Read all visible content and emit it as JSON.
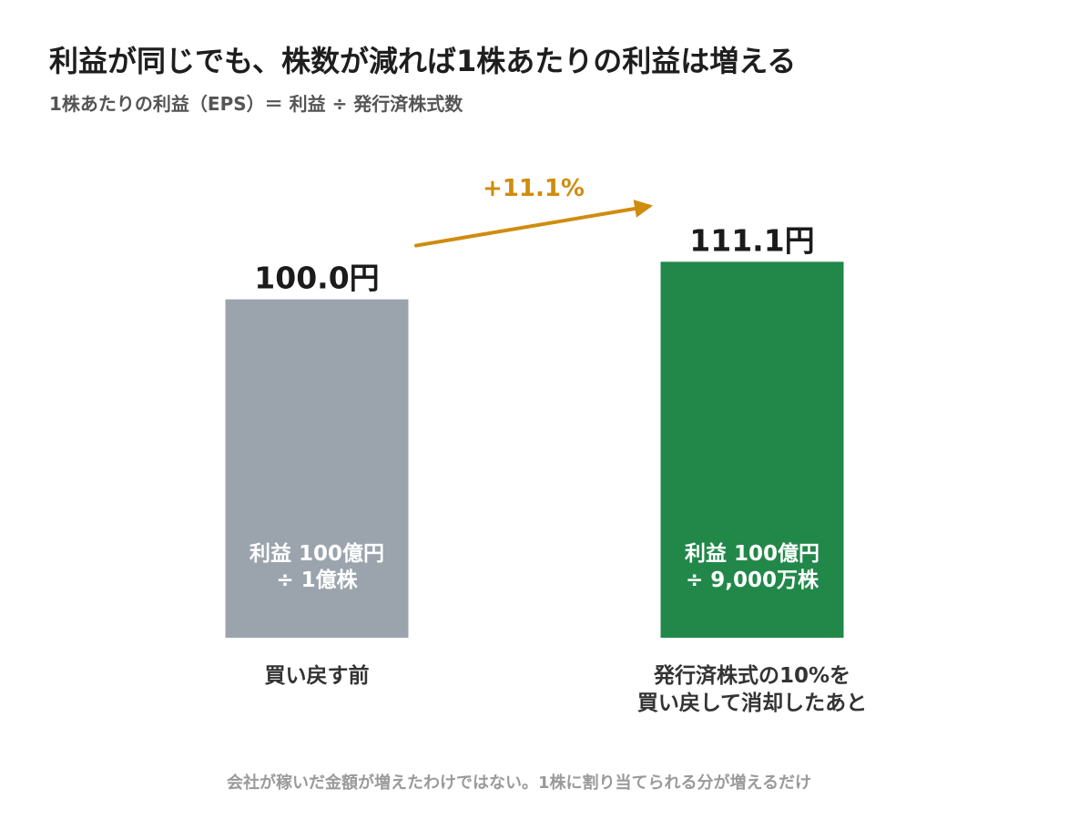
{
  "chart_data": {
    "type": "bar",
    "title": "利益が同じでも、株数が減れば1株あたりの利益は増える",
    "subtitle": "1株あたりの利益（EPS）＝ 利益 ÷ 発行済株式数",
    "categories": [
      [
        "買い戻す前"
      ],
      [
        "発行済株式の10%を",
        "買い戻して消却したあと"
      ]
    ],
    "values": [
      100.0,
      111.1
    ],
    "value_labels": [
      "100.0円",
      "111.1円"
    ],
    "inner_labels": [
      [
        "利益 100億円",
        "÷ 1億株"
      ],
      [
        "利益 100億円",
        "÷ 9,000万株"
      ]
    ],
    "colors": [
      "#9ba4ad",
      "#21884a"
    ],
    "change": {
      "label": "+11.1%",
      "color": "#d08c0e"
    },
    "ylim": [
      0,
      140
    ],
    "grid": false,
    "legend": "none",
    "footnote": "会社が稼いだ金額が増えたわけではない。1株に割り当てられる分が増えるだけ"
  }
}
